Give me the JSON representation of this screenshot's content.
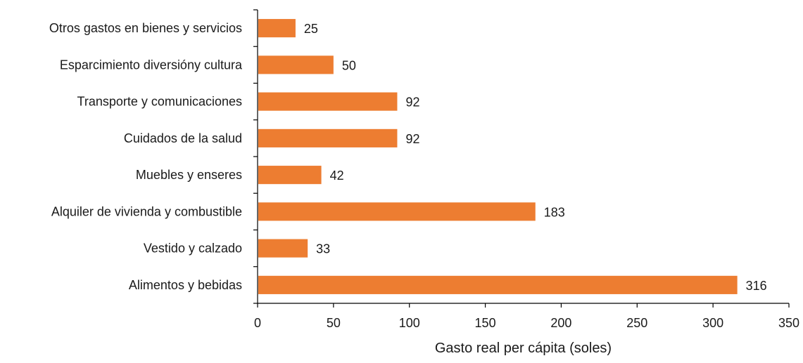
{
  "chart_data": {
    "type": "bar",
    "orientation": "horizontal",
    "categories": [
      "Otros gastos en bienes y servicios",
      "Esparcimiento diversióny cultura",
      "Transporte y comunicaciones",
      "Cuidados de la salud",
      "Muebles y enseres",
      "Alquiler de vivienda y combustible",
      "Vestido y calzado",
      "Alimentos y bebidas"
    ],
    "values": [
      25,
      50,
      92,
      92,
      42,
      183,
      33,
      316
    ],
    "value_labels": [
      "25",
      "50",
      "92",
      "92",
      "42",
      "183",
      "33",
      "316"
    ],
    "title": "",
    "xlabel": "Gasto real per cápita (soles)",
    "ylabel": "",
    "xlim": [
      0,
      350
    ],
    "xticks": [
      0,
      50,
      100,
      150,
      200,
      250,
      300,
      350
    ],
    "xtick_labels": [
      "0",
      "50",
      "100",
      "150",
      "200",
      "250",
      "300",
      "350"
    ],
    "grid": false,
    "legend": "none",
    "bar_color": "#ED7D31",
    "axis_color": "#000000"
  }
}
